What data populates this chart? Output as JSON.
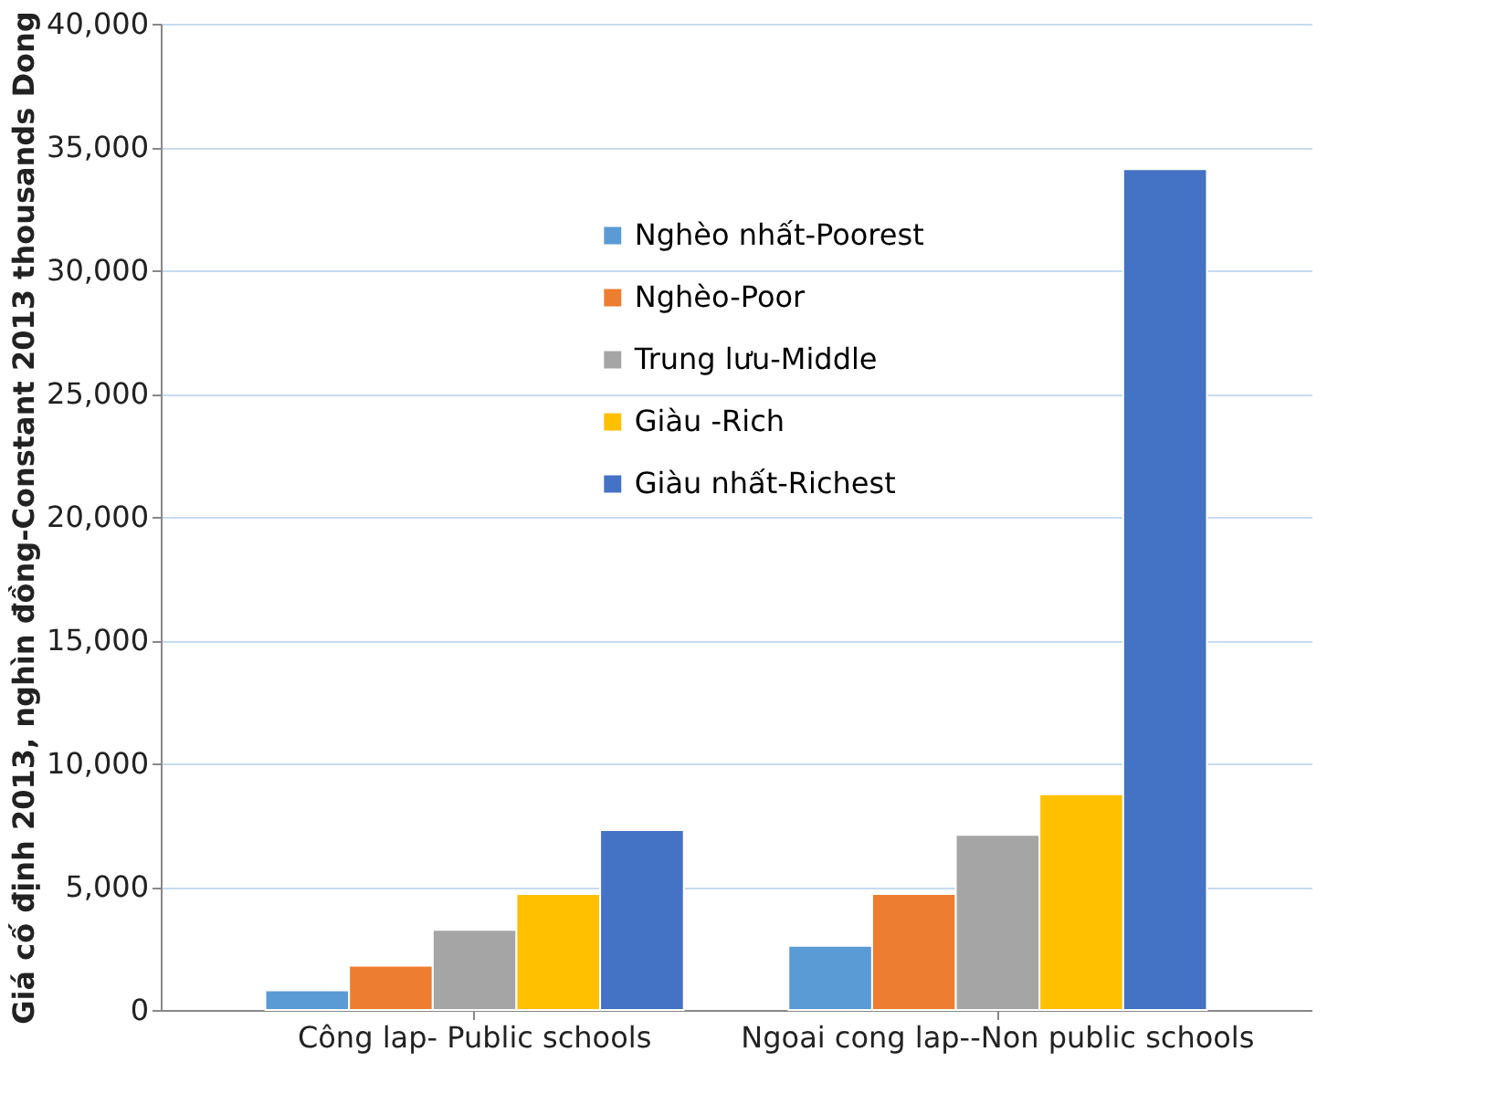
{
  "chart_data": {
    "type": "bar",
    "ylabel": "Giá cố định 2013, nghìn đồng-Constant 2013 thousands Dong",
    "categories": [
      "Công lap- Public schools",
      "Ngoai cong lap--Non public schools"
    ],
    "series": [
      {
        "name": "Nghèo nhất-Poorest",
        "color": "#5b9bd5",
        "values": [
          800,
          2600
        ]
      },
      {
        "name": "Nghèo-Poor",
        "color": "#ed7d31",
        "values": [
          1800,
          4700
        ]
      },
      {
        "name": "Trung lưu-Middle",
        "color": "#a5a5a5",
        "values": [
          3250,
          7100
        ]
      },
      {
        "name": "Giàu -Rich",
        "color": "#ffc000",
        "values": [
          4700,
          8750
        ]
      },
      {
        "name": "Giàu nhất-Richest",
        "color": "#4472c4",
        "values": [
          7300,
          34100
        ]
      }
    ],
    "ylim": [
      0,
      40000
    ],
    "yticks": [
      0,
      {
        "value": 5000,
        "label": "5,000"
      },
      {
        "value": 10000,
        "label": "10,000"
      },
      {
        "value": 15000,
        "label": "15,000"
      },
      {
        "value": 20000,
        "label": "20,000"
      },
      {
        "value": 25000,
        "label": "25,000"
      },
      {
        "value": 30000,
        "label": "30,000"
      },
      {
        "value": 35000,
        "label": "35,000"
      },
      {
        "value": 40000,
        "label": "40,000"
      }
    ],
    "grid": "y",
    "legend": "top"
  }
}
